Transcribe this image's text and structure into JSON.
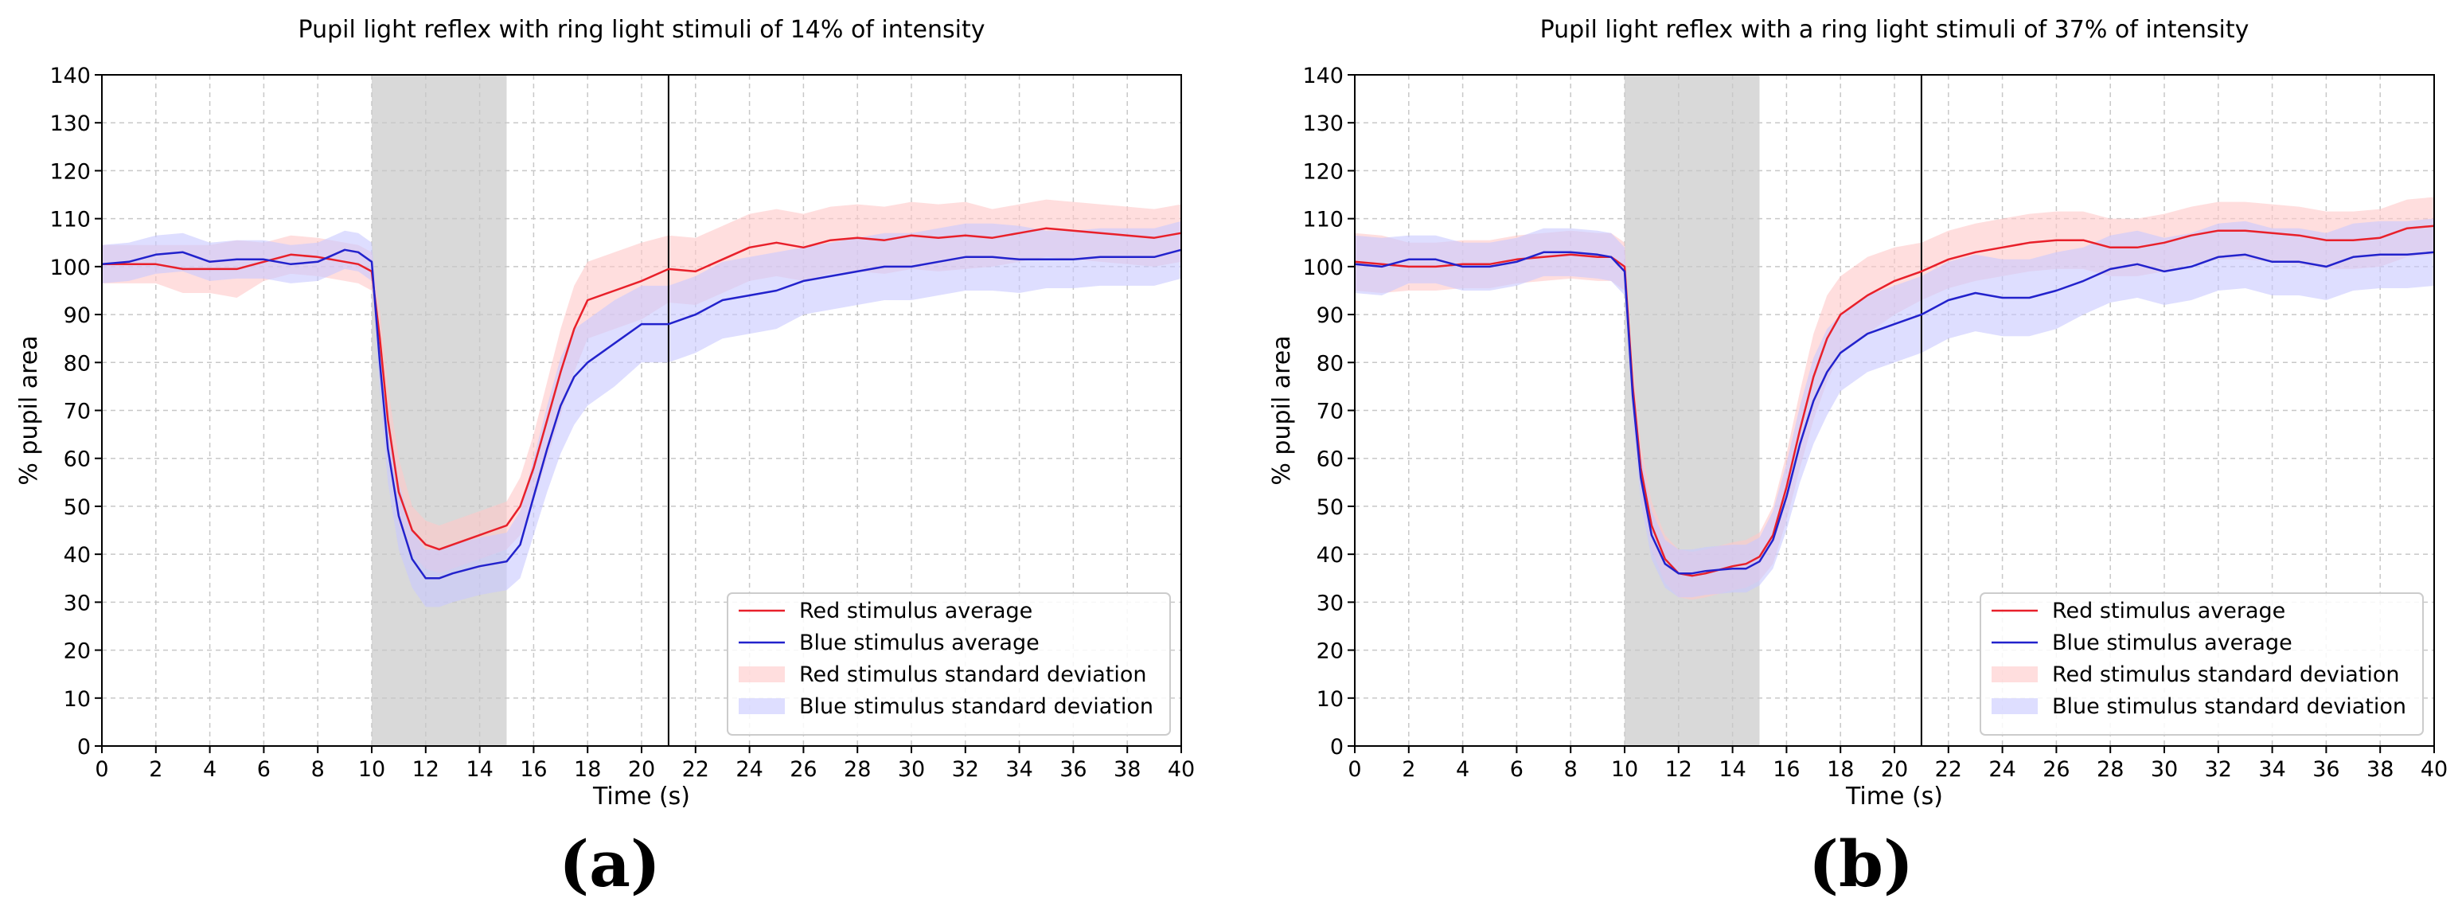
{
  "figure": {
    "panel_labels": [
      "(a)",
      "(b)"
    ],
    "colors": {
      "red_line": "#e8202a",
      "blue_line": "#2222cc",
      "red_band": "#ffc8c8",
      "blue_band": "#c8c8ff",
      "stimulus_shade": "#d9d9d9",
      "grid": "#c8c8c8",
      "axis": "#000000"
    }
  },
  "chart_data": [
    {
      "type": "line",
      "title": "Pupil light reflex with ring light stimuli of 14% of intensity",
      "xlabel": "Time (s)",
      "ylabel": "% pupil area",
      "xlim": [
        0,
        40
      ],
      "ylim": [
        0,
        140
      ],
      "xticks": [
        0,
        2,
        4,
        6,
        8,
        10,
        12,
        14,
        16,
        18,
        20,
        22,
        24,
        26,
        28,
        30,
        32,
        34,
        36,
        38,
        40
      ],
      "yticks": [
        0,
        10,
        20,
        30,
        40,
        50,
        60,
        70,
        80,
        90,
        100,
        110,
        120,
        130,
        140
      ],
      "grid": true,
      "stimulus_window": [
        10,
        15
      ],
      "vertical_marker": 21,
      "legend_position": "lower right",
      "legend": [
        "Red stimulus average",
        "Blue stimulus average",
        "Red stimulus standard deviation",
        "Blue stimulus standard deviation"
      ],
      "x": [
        0,
        1,
        2,
        3,
        4,
        5,
        6,
        7,
        8,
        9,
        9.5,
        10,
        10.3,
        10.6,
        11,
        11.5,
        12,
        12.5,
        13,
        14,
        14.5,
        15,
        15.5,
        16,
        16.5,
        17,
        17.5,
        18,
        19,
        20,
        21,
        22,
        23,
        24,
        25,
        26,
        27,
        28,
        29,
        30,
        31,
        32,
        33,
        34,
        35,
        36,
        37,
        38,
        39,
        40
      ],
      "series": [
        {
          "name": "Red stimulus average",
          "values": [
            100.5,
            100.5,
            100.5,
            99.5,
            99.5,
            99.5,
            101,
            102.5,
            102,
            101,
            100.5,
            99,
            85,
            68,
            53,
            45,
            42,
            41,
            42,
            44,
            45,
            46,
            50,
            58,
            68,
            78,
            87,
            93,
            95,
            97,
            99.5,
            99,
            101.5,
            104,
            105,
            104,
            105.5,
            106,
            105.5,
            106.5,
            106,
            106.5,
            106,
            107,
            108,
            107.5,
            107,
            106.5,
            106,
            107
          ],
          "std": [
            4,
            4,
            4,
            5,
            5,
            6,
            4,
            4,
            4,
            4,
            4,
            4,
            6,
            7,
            7,
            5,
            5,
            5,
            5,
            5,
            5,
            5,
            6,
            7,
            8,
            9,
            9,
            8,
            8,
            8,
            7,
            7,
            7,
            7,
            7,
            7,
            7,
            7,
            7,
            7,
            7,
            7,
            6,
            6,
            6,
            6,
            6,
            6,
            6,
            6
          ]
        },
        {
          "name": "Blue stimulus average",
          "values": [
            100.5,
            101,
            102.5,
            103,
            101,
            101.5,
            101.5,
            100.5,
            101,
            103.5,
            103,
            101,
            80,
            62,
            48,
            39,
            35,
            35,
            36,
            37.5,
            38,
            38.5,
            42,
            52,
            62,
            71,
            77,
            80,
            84,
            88,
            88,
            90,
            93,
            94,
            95,
            97,
            98,
            99,
            100,
            100,
            101,
            102,
            102,
            101.5,
            101.5,
            101.5,
            102,
            102,
            102,
            103.5
          ],
          "std": [
            4,
            4,
            4,
            4,
            4,
            4,
            4,
            4,
            4,
            4,
            4,
            4,
            6,
            7,
            7,
            6,
            6,
            6,
            6,
            6,
            6,
            6,
            7,
            8,
            9,
            10,
            10,
            9,
            9,
            8,
            8,
            8,
            8,
            8,
            8,
            7,
            7,
            7,
            7,
            7,
            7,
            7,
            7,
            7,
            6,
            6,
            6,
            6,
            6,
            6
          ]
        }
      ]
    },
    {
      "type": "line",
      "title": "Pupil light reflex with a ring light stimuli of 37% of intensity",
      "xlabel": "Time (s)",
      "ylabel": "% pupil area",
      "xlim": [
        0,
        40
      ],
      "ylim": [
        0,
        140
      ],
      "xticks": [
        0,
        2,
        4,
        6,
        8,
        10,
        12,
        14,
        16,
        18,
        20,
        22,
        24,
        26,
        28,
        30,
        32,
        34,
        36,
        38,
        40
      ],
      "yticks": [
        0,
        10,
        20,
        30,
        40,
        50,
        60,
        70,
        80,
        90,
        100,
        110,
        120,
        130,
        140
      ],
      "grid": true,
      "stimulus_window": [
        10,
        15
      ],
      "vertical_marker": 21,
      "legend_position": "lower right",
      "legend": [
        "Red stimulus average",
        "Blue stimulus average",
        "Red stimulus standard deviation",
        "Blue stimulus standard deviation"
      ],
      "x": [
        0,
        1,
        2,
        3,
        4,
        5,
        6,
        7,
        8,
        9,
        9.5,
        10,
        10.3,
        10.6,
        11,
        11.5,
        12,
        12.5,
        13,
        14,
        14.5,
        15,
        15.5,
        16,
        16.5,
        17,
        17.5,
        18,
        19,
        20,
        21,
        22,
        23,
        24,
        25,
        26,
        27,
        28,
        29,
        30,
        31,
        32,
        33,
        34,
        35,
        36,
        37,
        38,
        39,
        40
      ],
      "series": [
        {
          "name": "Red stimulus average",
          "values": [
            101,
            100.5,
            100,
            100,
            100.5,
            100.5,
            101.5,
            102,
            102.5,
            102,
            102,
            100,
            75,
            58,
            46,
            39,
            36,
            35.5,
            36,
            37.5,
            38,
            39.5,
            44,
            54,
            66,
            77,
            85,
            90,
            94,
            97,
            99,
            101.5,
            103,
            104,
            105,
            105.5,
            105.5,
            104,
            104,
            105,
            106.5,
            107.5,
            107.5,
            107,
            106.5,
            105.5,
            105.5,
            106,
            108,
            108.5
          ],
          "std": [
            6,
            6,
            5,
            5,
            5,
            5,
            5,
            5,
            5,
            5,
            5,
            5,
            5,
            5,
            5,
            5,
            5,
            5,
            5,
            5,
            5,
            5,
            6,
            7,
            8,
            9,
            9,
            8,
            8,
            7,
            6,
            6,
            6,
            6,
            6,
            6,
            6,
            6,
            6,
            6,
            6,
            6,
            6,
            6,
            6,
            6,
            6,
            6,
            6,
            6
          ]
        },
        {
          "name": "Blue stimulus average",
          "values": [
            100.5,
            100,
            101.5,
            101.5,
            100,
            100,
            101,
            103,
            103,
            102.5,
            102,
            99,
            73,
            56,
            44,
            38,
            36,
            36,
            36.5,
            37,
            37,
            38.5,
            43,
            52,
            63,
            72,
            78,
            82,
            86,
            88,
            90,
            93,
            94.5,
            93.5,
            93.5,
            95,
            97,
            99.5,
            100.5,
            99,
            100,
            102,
            102.5,
            101,
            101,
            100,
            102,
            102.5,
            102.5,
            103
          ],
          "std": [
            6,
            6,
            5,
            5,
            5,
            5,
            5,
            5,
            5,
            5,
            5,
            5,
            5,
            5,
            5,
            5,
            5,
            5,
            5,
            5,
            5,
            5,
            6,
            7,
            8,
            9,
            9,
            8,
            8,
            8,
            8,
            8,
            8,
            8,
            8,
            8,
            7,
            7,
            7,
            7,
            7,
            7,
            7,
            7,
            7,
            7,
            7,
            7,
            7,
            7
          ]
        }
      ]
    }
  ]
}
